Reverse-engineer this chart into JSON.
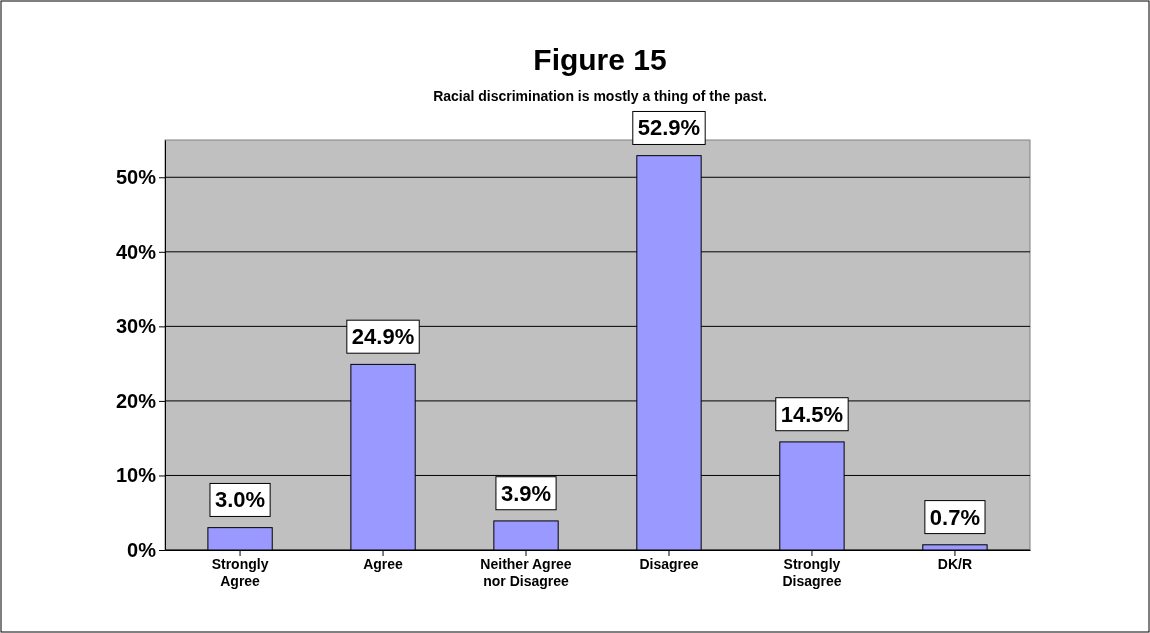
{
  "chart_data": {
    "type": "bar",
    "title": "Figure 15",
    "subtitle": "Racial discrimination is mostly a thing of the past.",
    "categories": [
      "Strongly Agree",
      "Agree",
      "Neither Agree nor Disagree",
      "Disagree",
      "Strongly Disagree",
      "DK/R"
    ],
    "values": [
      3.0,
      24.9,
      3.9,
      52.9,
      14.5,
      0.7
    ],
    "color": "#9999ff",
    "value_labels": [
      "3.0%",
      "24.9%",
      "3.9%",
      "52.9%",
      "14.5%",
      "0.7%"
    ],
    "ylim": [
      0,
      55
    ],
    "yticks": [
      {
        "value": 0,
        "label": "0%"
      },
      {
        "value": 10,
        "label": "10%"
      },
      {
        "value": 20,
        "label": "20%"
      },
      {
        "value": 30,
        "label": "30%"
      },
      {
        "value": 40,
        "label": "40%"
      },
      {
        "value": 50,
        "label": "50%"
      }
    ],
    "grid": "y"
  }
}
